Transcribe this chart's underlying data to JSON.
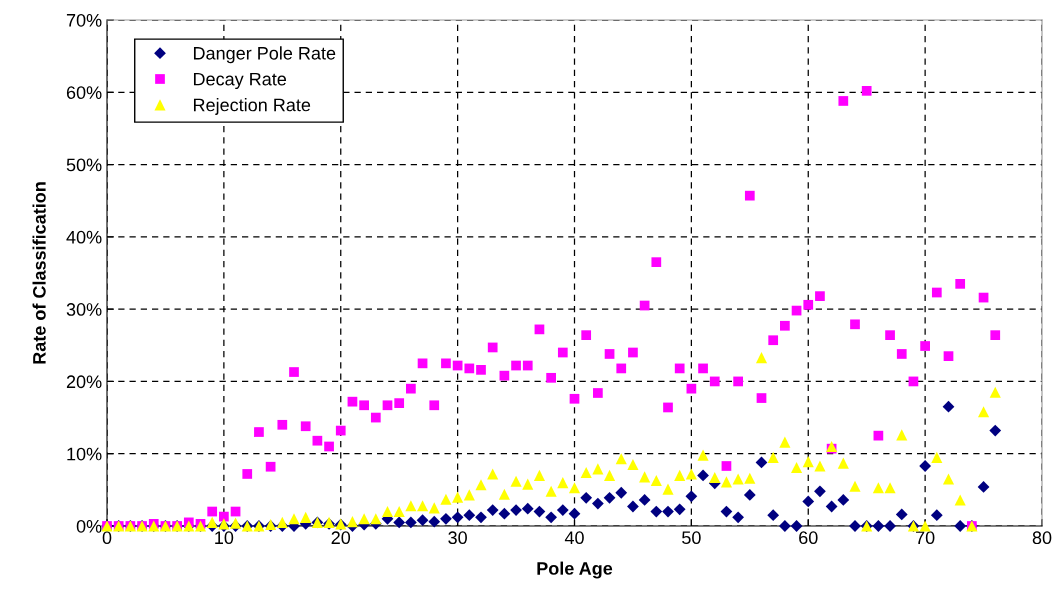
{
  "chart_data": {
    "type": "scatter",
    "xlabel": "Pole Age",
    "ylabel": "Rate of Classification",
    "xlim": [
      0,
      80
    ],
    "xticks": [
      0,
      10,
      20,
      30,
      40,
      50,
      60,
      70,
      80
    ],
    "ylim": [
      0,
      70
    ],
    "yticks": [
      {
        "value": 0,
        "label": "0%"
      },
      {
        "value": 10,
        "label": "10%"
      },
      {
        "value": 20,
        "label": "20%"
      },
      {
        "value": 30,
        "label": "30%"
      },
      {
        "value": 40,
        "label": "40%"
      },
      {
        "value": 50,
        "label": "50%"
      },
      {
        "value": 60,
        "label": "60%"
      },
      {
        "value": 70,
        "label": "70%"
      }
    ],
    "grid": true,
    "legend": "top left",
    "x": [
      0,
      1,
      2,
      3,
      4,
      5,
      6,
      7,
      8,
      9,
      10,
      11,
      12,
      13,
      14,
      15,
      16,
      17,
      18,
      19,
      20,
      21,
      22,
      23,
      24,
      25,
      26,
      27,
      28,
      29,
      30,
      31,
      32,
      33,
      34,
      35,
      36,
      37,
      38,
      39,
      40,
      41,
      42,
      43,
      44,
      45,
      46,
      47,
      48,
      49,
      50,
      51,
      52,
      53,
      54,
      55,
      56,
      57,
      58,
      59,
      60,
      61,
      62,
      63,
      64,
      65,
      66,
      67,
      68,
      69,
      70,
      71,
      72,
      73,
      74,
      75,
      76
    ],
    "series": [
      {
        "name": "Danger Pole Rate",
        "color": "#000080",
        "marker": "diamond",
        "values": [
          0,
          0,
          0,
          0,
          0,
          0,
          0,
          0,
          0,
          0,
          0,
          0,
          0,
          0,
          0,
          0,
          0,
          0.3,
          0.5,
          0.3,
          0.2,
          0,
          0.2,
          0.3,
          1,
          0.5,
          0.5,
          0.8,
          0.6,
          1,
          1.2,
          1.5,
          1.2,
          2.2,
          1.7,
          2.2,
          2.4,
          2,
          1.2,
          2.2,
          1.7,
          3.9,
          3.1,
          3.9,
          4.6,
          2.7,
          3.6,
          2,
          2,
          2.3,
          4.1,
          7,
          5.9,
          2,
          1.2,
          4.3,
          8.8,
          1.5,
          0,
          0,
          3.4,
          4.8,
          2.7,
          3.6,
          0,
          0,
          0,
          0,
          1.6,
          0,
          8.3,
          1.5,
          16.5,
          0,
          0,
          5.4,
          13.2
        ]
      },
      {
        "name": "Decay Rate",
        "color": "#ff00ff",
        "marker": "square",
        "values": [
          0,
          0,
          0,
          0,
          0.3,
          0,
          0,
          0.5,
          0.3,
          2,
          1.3,
          2,
          7.2,
          13,
          8.2,
          14,
          21.3,
          13.8,
          11.8,
          11,
          13.2,
          17.2,
          16.7,
          15,
          16.7,
          17,
          19,
          22.5,
          16.7,
          22.5,
          22.2,
          21.8,
          21.6,
          24.7,
          20.8,
          22.2,
          22.2,
          27.2,
          20.5,
          24,
          17.6,
          26.4,
          18.4,
          23.8,
          21.8,
          24,
          30.5,
          36.5,
          16.4,
          21.8,
          19,
          21.8,
          20,
          8.3,
          20,
          45.7,
          17.7,
          25.7,
          27.7,
          29.8,
          30.6,
          31.8,
          10.7,
          58.8,
          27.9,
          60.2,
          12.5,
          26.4,
          23.8,
          20,
          24.9,
          32.3,
          23.5,
          33.5,
          0,
          31.6,
          26.4
        ]
      },
      {
        "name": "Rejection Rate",
        "color": "#ffff00",
        "marker": "triangle",
        "values": [
          0,
          0,
          0,
          0,
          0,
          0,
          0,
          0,
          0,
          0.5,
          0.3,
          0.4,
          0,
          0,
          0.2,
          0.5,
          1,
          1.2,
          0.5,
          0.5,
          0.3,
          0.6,
          1,
          1,
          2,
          2,
          2.8,
          2.8,
          2.5,
          3.7,
          4,
          4.3,
          5.7,
          7.2,
          4.4,
          6.2,
          5.8,
          7,
          4.8,
          6,
          5.3,
          7.4,
          7.9,
          7,
          9.3,
          8.5,
          6.8,
          6.3,
          5.1,
          7,
          7.2,
          9.8,
          6.7,
          6.1,
          6.5,
          6.6,
          23.3,
          9.5,
          11.6,
          8.1,
          8.9,
          8.3,
          11,
          8.7,
          5.5,
          0,
          5.3,
          5.3,
          12.6,
          0,
          0,
          9.5,
          6.5,
          3.6,
          0,
          15.8,
          18.5
        ]
      }
    ]
  }
}
